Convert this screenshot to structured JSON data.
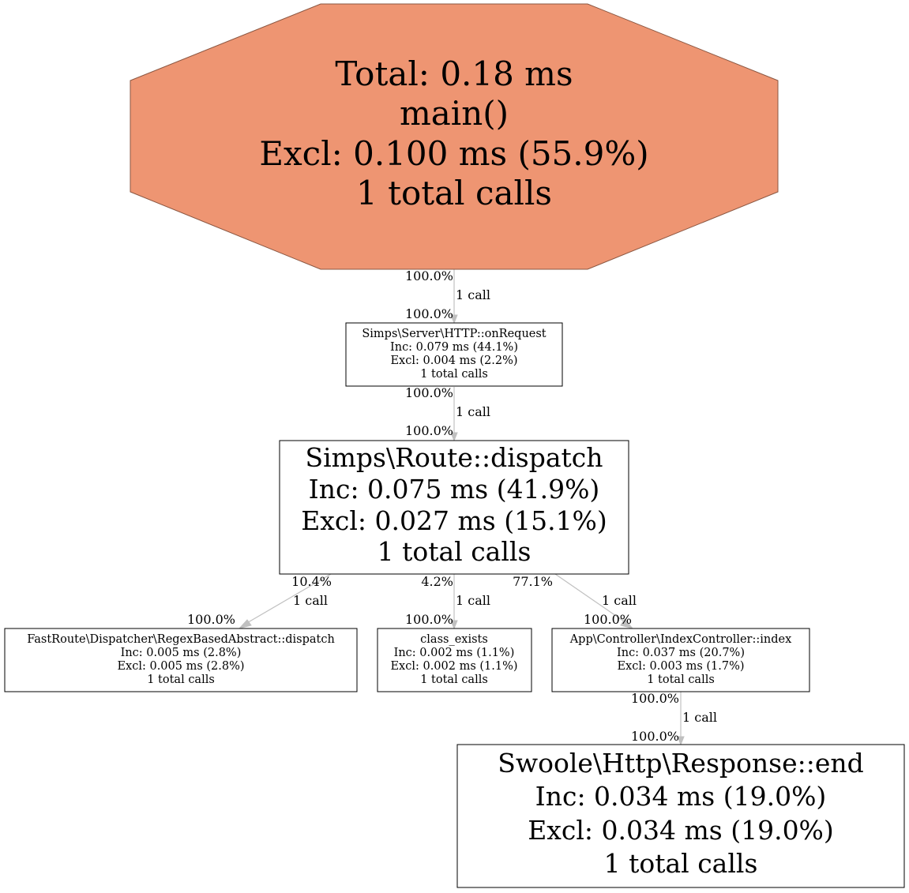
{
  "graph": {
    "nodes": {
      "main": {
        "lines": [
          "Total: 0.18 ms",
          "main()",
          "Excl: 0.100 ms (55.9%)",
          "1 total calls"
        ],
        "fill": "#ee9572",
        "stroke": "#8b5742"
      },
      "onrequest": {
        "lines": [
          "Simps\\Server\\HTTP::onRequest",
          "Inc: 0.079 ms (44.1%)",
          "Excl: 0.004 ms (2.2%)",
          "1 total calls"
        ]
      },
      "dispatch": {
        "lines": [
          "Simps\\Route::dispatch",
          "Inc: 0.075 ms (41.9%)",
          "Excl: 0.027 ms (15.1%)",
          "1 total calls"
        ]
      },
      "regexdispatch": {
        "lines": [
          "FastRoute\\Dispatcher\\RegexBasedAbstract::dispatch",
          "Inc: 0.005 ms (2.8%)",
          "Excl: 0.005 ms (2.8%)",
          "1 total calls"
        ]
      },
      "classexists": {
        "lines": [
          "class_exists",
          "Inc: 0.002 ms (1.1%)",
          "Excl: 0.002 ms (1.1%)",
          "1 total calls"
        ]
      },
      "index": {
        "lines": [
          "App\\Controller\\IndexController::index",
          "Inc: 0.037 ms (20.7%)",
          "Excl: 0.003 ms (1.7%)",
          "1 total calls"
        ]
      },
      "responseend": {
        "lines": [
          "Swoole\\Http\\Response::end",
          "Inc: 0.034 ms (19.0%)",
          "Excl: 0.034 ms (19.0%)",
          "1 total calls"
        ]
      }
    },
    "edges": {
      "main_onrequest": {
        "tail": "100.0%",
        "head": "100.0%",
        "label": "1 call"
      },
      "onrequest_dispatch": {
        "tail": "100.0%",
        "head": "100.0%",
        "label": "1 call"
      },
      "dispatch_regex": {
        "tail": "10.4%",
        "head": "100.0%",
        "label": "1 call"
      },
      "dispatch_classexists": {
        "tail": "4.2%",
        "head": "100.0%",
        "label": "1 call"
      },
      "dispatch_index": {
        "tail": "77.1%",
        "head": "100.0%",
        "label": "1 call"
      },
      "index_responseend": {
        "tail": "100.0%",
        "head": "100.0%",
        "label": "1 call"
      }
    },
    "edge_color": "#c0c0c0"
  }
}
